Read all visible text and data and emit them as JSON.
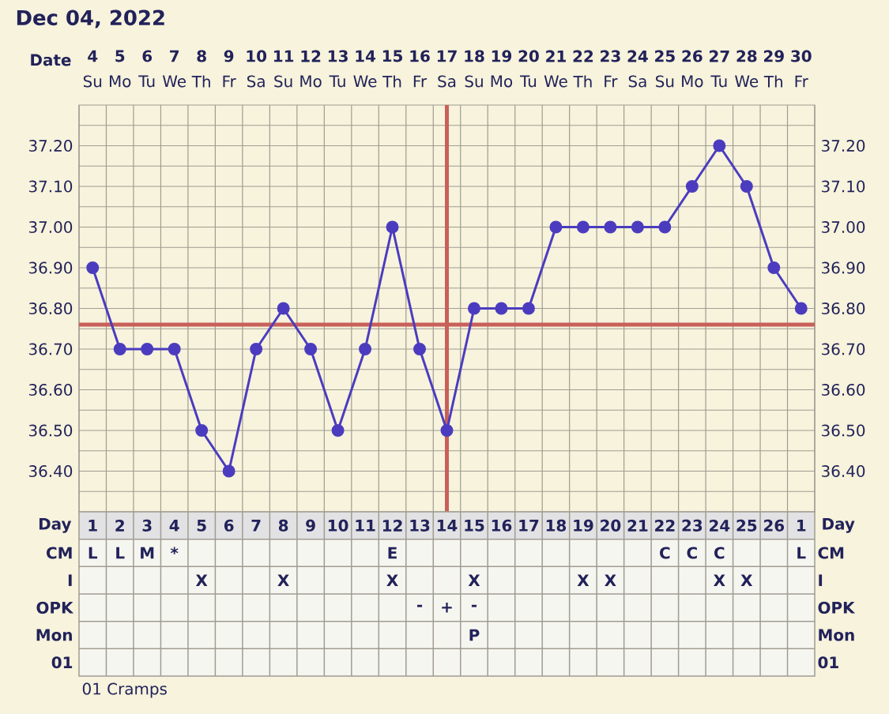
{
  "chart_data": [
    {
      "type": "line",
      "title": "Dec 04, 2022",
      "xlabel": "Date",
      "categories": [
        "Su",
        "Mo",
        "Tu",
        "We",
        "Th",
        "Fr",
        "Sa",
        "Su",
        "Mo",
        "Tu",
        "We",
        "Th",
        "Fr",
        "Sa",
        "Su",
        "Mo",
        "Tu",
        "We",
        "Th",
        "Fr",
        "Sa",
        "Su",
        "Mo",
        "Tu",
        "We",
        "Th",
        "Fr"
      ],
      "x2lim": [
        3.5,
        30.5
      ],
      "x2ticks": [
        4,
        5,
        6,
        7,
        8,
        9,
        10,
        11,
        12,
        13,
        14,
        15,
        16,
        17,
        18,
        19,
        20,
        21,
        22,
        23,
        24,
        25,
        26,
        27,
        28,
        29,
        30
      ],
      "ylim": [
        36.3,
        37.3
      ],
      "yticks": [
        {
          "value": 36.4,
          "label": "36.40"
        },
        {
          "value": 36.5,
          "label": "36.50"
        },
        {
          "value": 36.6,
          "label": "36.60"
        },
        {
          "value": 36.7,
          "label": "36.70"
        },
        {
          "value": 36.8,
          "label": "36.80"
        },
        {
          "value": 36.9,
          "label": "36.90"
        },
        {
          "value": 37.0,
          "label": "37.00"
        },
        {
          "value": 37.1,
          "label": "37.10"
        },
        {
          "value": 37.2,
          "label": "37.20"
        }
      ],
      "y2lim": [
        36.3,
        37.3
      ],
      "y2ticks": [
        {
          "value": 36.4,
          "label": "36.40"
        },
        {
          "value": 36.5,
          "label": "36.50"
        },
        {
          "value": 36.6,
          "label": "36.60"
        },
        {
          "value": 36.7,
          "label": "36.70"
        },
        {
          "value": 36.8,
          "label": "36.80"
        },
        {
          "value": 36.9,
          "label": "36.90"
        },
        {
          "value": 37.0,
          "label": "37.00"
        },
        {
          "value": 37.1,
          "label": "37.10"
        },
        {
          "value": 37.2,
          "label": "37.20"
        }
      ],
      "series": [
        {
          "color": "#4b3cbf",
          "values": [
            36.9,
            36.7,
            36.7,
            36.7,
            36.5,
            36.4,
            36.7,
            36.8,
            36.7,
            36.5,
            36.7,
            37.0,
            36.7,
            36.5,
            36.8,
            36.8,
            36.8,
            37.0,
            37.0,
            37.0,
            37.0,
            37.0,
            37.1,
            37.2,
            37.1,
            36.9,
            36.8
          ]
        }
      ],
      "marker": "circle",
      "grid": true,
      "ref_lines": [
        {
          "axis": "y",
          "value": 36.76,
          "color": "#c8605a"
        },
        {
          "axis": "x2",
          "value": 17,
          "color": "#c8605a"
        }
      ]
    },
    {
      "type": "heatmap",
      "xlabel": "Day",
      "x2label": "Day",
      "categories": [
        "1",
        "2",
        "3",
        "4",
        "5",
        "6",
        "7",
        "8",
        "9",
        "10",
        "11",
        "12",
        "13",
        "14",
        "15",
        "16",
        "17",
        "18",
        "19",
        "20",
        "21",
        "22",
        "23",
        "24",
        "25",
        "26",
        "1"
      ],
      "y_categories": [
        "CM",
        "I",
        "OPK",
        "Mon",
        "01"
      ],
      "y2_categories": [
        "CM",
        "I",
        "OPK",
        "Mon",
        "01"
      ],
      "cells": [
        [
          null,
          null,
          null,
          null,
          null,
          null,
          null,
          null,
          null,
          null,
          null,
          null,
          null,
          null,
          null,
          null,
          null,
          null,
          null,
          null,
          null,
          null,
          null,
          null,
          null,
          null,
          null
        ],
        [
          null,
          null,
          null,
          null,
          null,
          null,
          null,
          null,
          null,
          null,
          null,
          null,
          null,
          null,
          null,
          null,
          null,
          null,
          null,
          null,
          null,
          null,
          null,
          null,
          null,
          null,
          null
        ],
        [
          null,
          null,
          null,
          null,
          null,
          null,
          null,
          null,
          null,
          null,
          null,
          null,
          null,
          null,
          null,
          null,
          null,
          null,
          null,
          null,
          null,
          null,
          null,
          null,
          null,
          null,
          null
        ],
        [
          null,
          null,
          null,
          null,
          null,
          null,
          null,
          null,
          null,
          null,
          null,
          null,
          null,
          null,
          null,
          null,
          null,
          null,
          null,
          null,
          null,
          null,
          null,
          null,
          null,
          null,
          null
        ],
        [
          null,
          null,
          null,
          null,
          null,
          null,
          null,
          null,
          null,
          null,
          null,
          null,
          null,
          null,
          null,
          null,
          null,
          null,
          null,
          null,
          null,
          null,
          null,
          null,
          null,
          null,
          null
        ]
      ],
      "cell_labels": [
        [
          "L",
          "L",
          "M",
          "*",
          null,
          null,
          null,
          null,
          null,
          null,
          null,
          "E",
          null,
          null,
          null,
          null,
          null,
          null,
          null,
          null,
          null,
          "C",
          "C",
          "C",
          null,
          null,
          "L"
        ],
        [
          null,
          null,
          null,
          null,
          "X",
          null,
          null,
          "X",
          null,
          null,
          null,
          "X",
          null,
          null,
          "X",
          null,
          null,
          null,
          "X",
          "X",
          null,
          null,
          null,
          "X",
          "X",
          null,
          null
        ],
        [
          null,
          null,
          null,
          null,
          null,
          null,
          null,
          null,
          null,
          null,
          null,
          null,
          "-",
          "+",
          "-",
          null,
          null,
          null,
          null,
          null,
          null,
          null,
          null,
          null,
          null,
          null,
          null
        ],
        [
          null,
          null,
          null,
          null,
          null,
          null,
          null,
          null,
          null,
          null,
          null,
          null,
          null,
          null,
          "P",
          null,
          null,
          null,
          null,
          null,
          null,
          null,
          null,
          null,
          null,
          null,
          null
        ],
        [
          null,
          null,
          null,
          null,
          null,
          null,
          null,
          null,
          null,
          null,
          null,
          null,
          null,
          null,
          null,
          null,
          null,
          null,
          null,
          null,
          null,
          null,
          null,
          null,
          null,
          null,
          null
        ]
      ],
      "annotations": [
        "01 Cramps"
      ]
    }
  ]
}
